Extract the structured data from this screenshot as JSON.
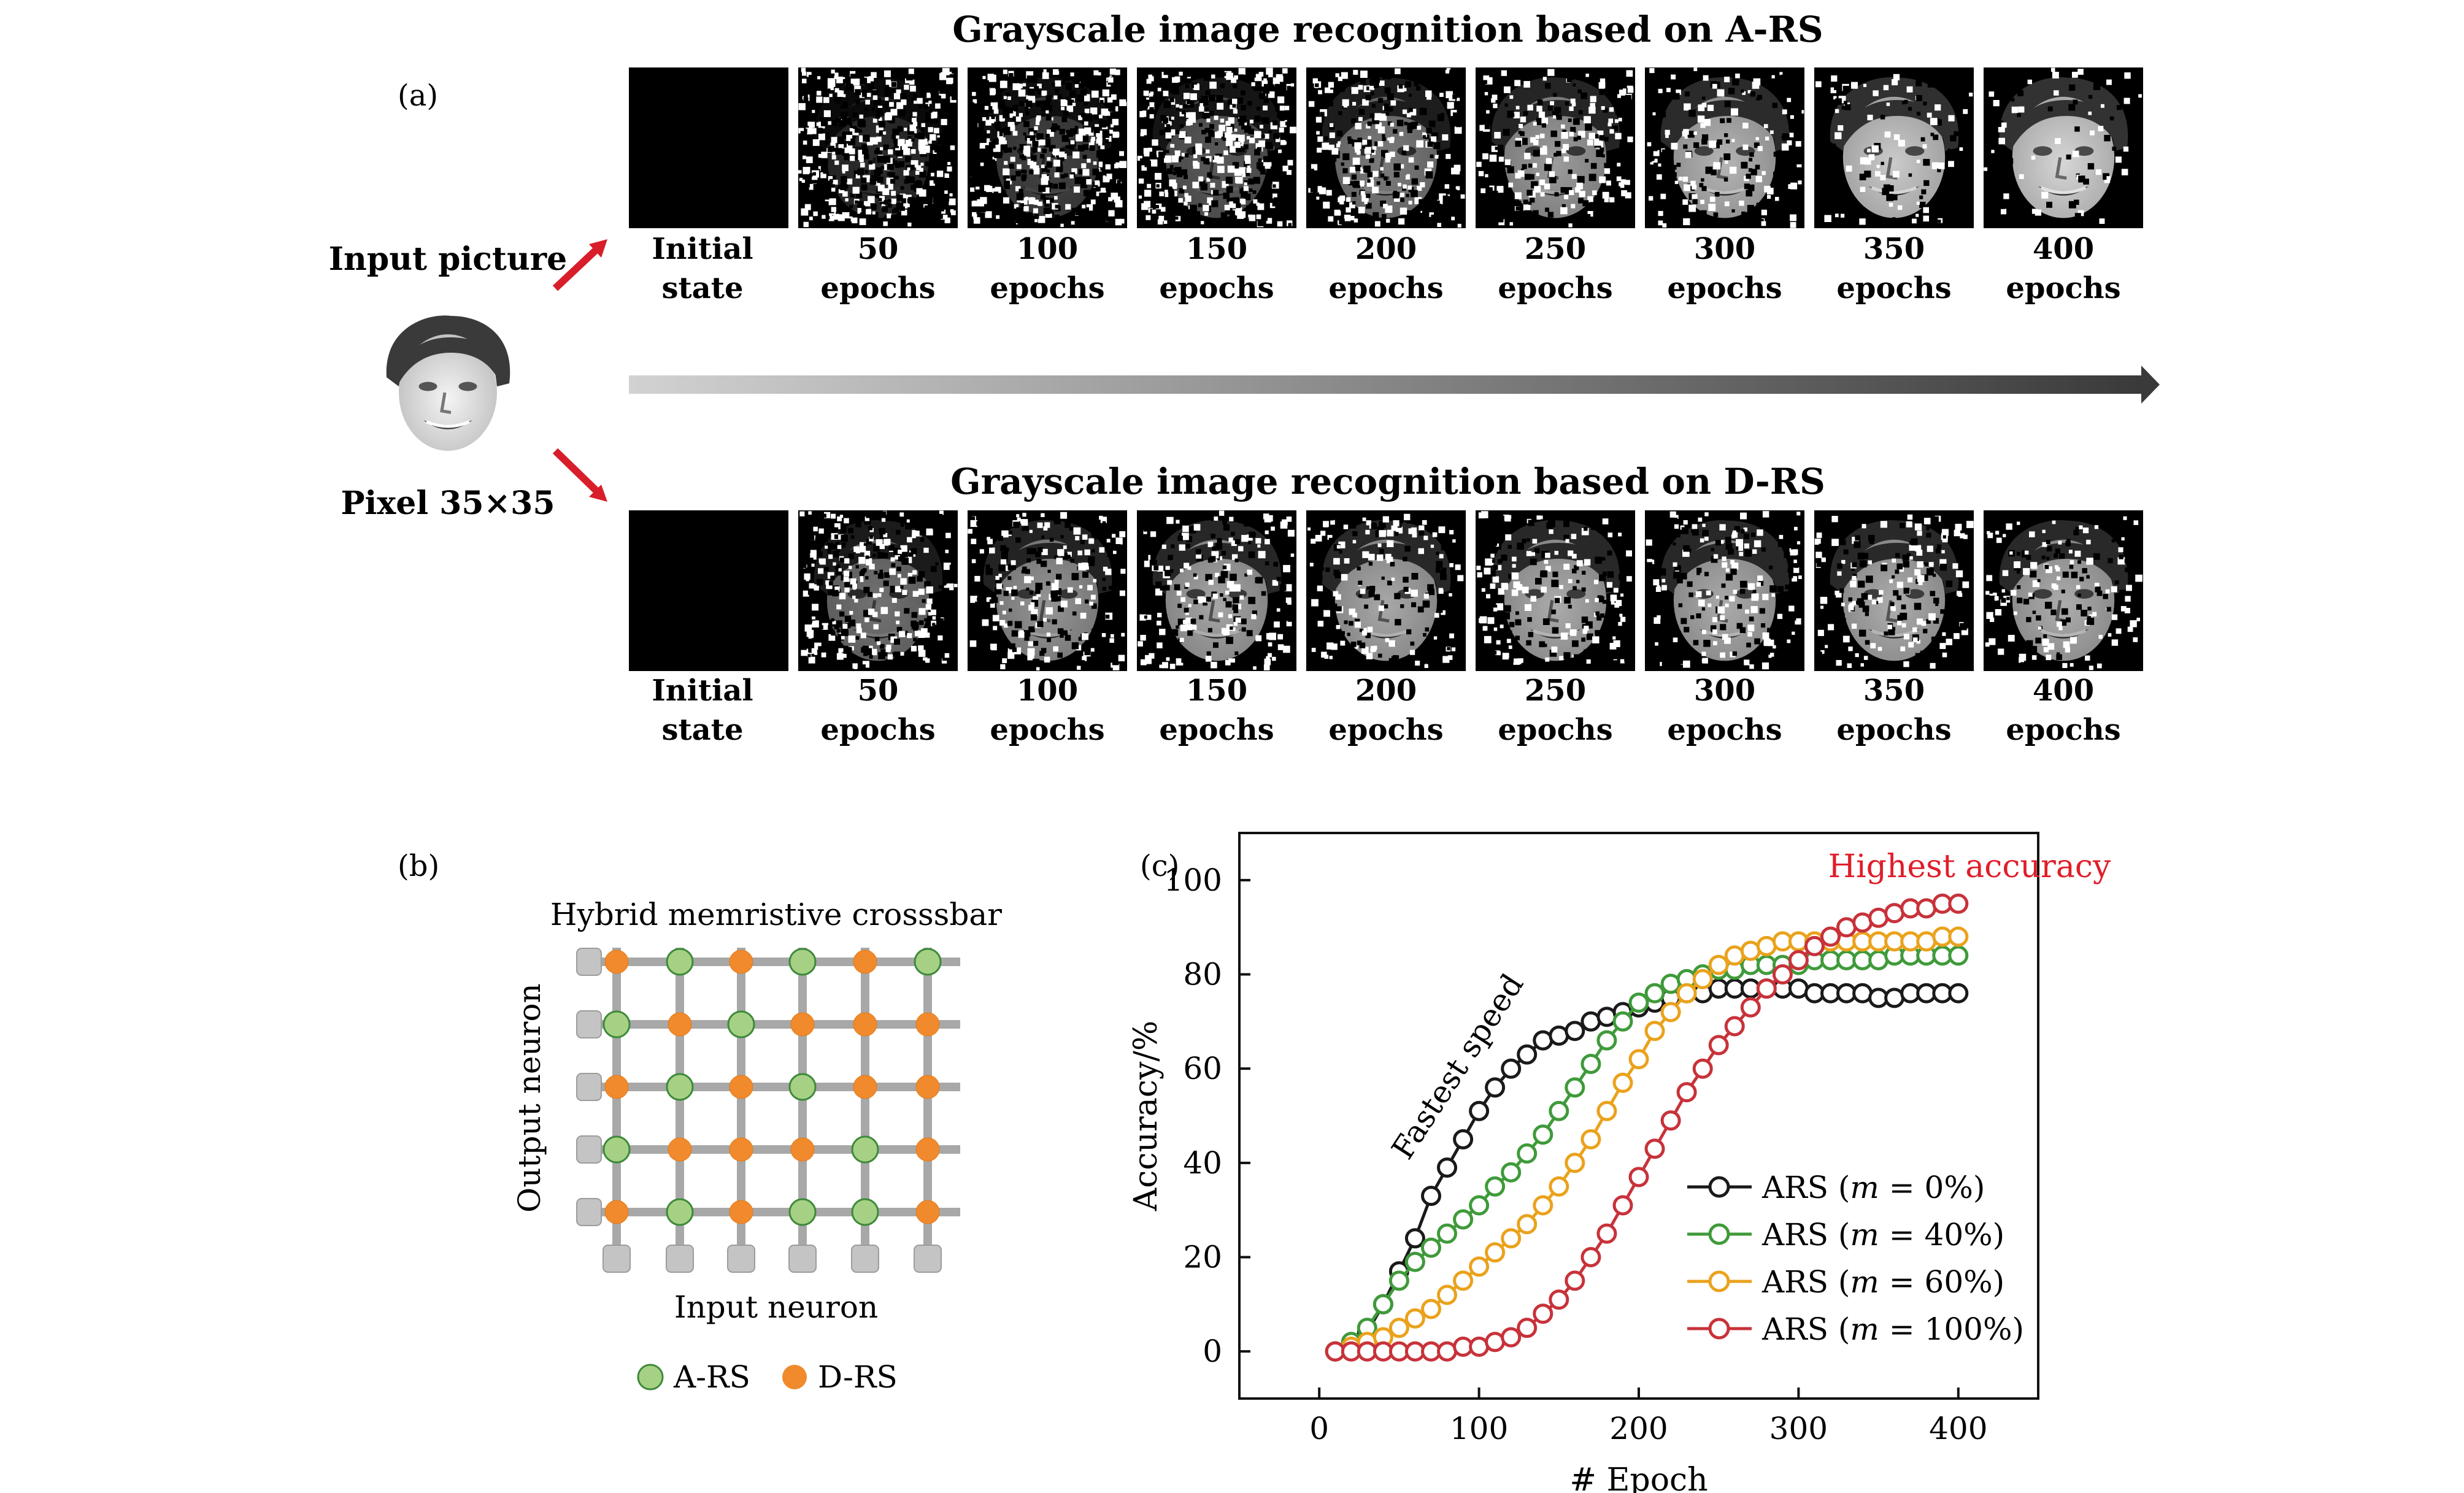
{
  "panel_a": {
    "label": "(a)",
    "input_title": "Input picture",
    "input_caption": "Pixel 35×35",
    "rows": [
      {
        "title": "Grayscale image recognition based on A-RS",
        "noise_levels": [
          1.0,
          0.96,
          0.86,
          0.74,
          0.58,
          0.42,
          0.3,
          0.2,
          0.14
        ],
        "frame_labels": [
          [
            "Initial",
            "state"
          ],
          [
            "50",
            "epochs"
          ],
          [
            "100",
            "epochs"
          ],
          [
            "150",
            "epochs"
          ],
          [
            "200",
            "epochs"
          ],
          [
            "250",
            "epochs"
          ],
          [
            "300",
            "epochs"
          ],
          [
            "350",
            "epochs"
          ],
          [
            "400",
            "epochs"
          ]
        ]
      },
      {
        "title": "Grayscale image recognition based on D-RS",
        "noise_levels": [
          1.0,
          0.62,
          0.46,
          0.38,
          0.36,
          0.35,
          0.35,
          0.34,
          0.34
        ],
        "frame_labels": [
          [
            "Initial",
            "state"
          ],
          [
            "50",
            "epochs"
          ],
          [
            "100",
            "epochs"
          ],
          [
            "150",
            "epochs"
          ],
          [
            "200",
            "epochs"
          ],
          [
            "250",
            "epochs"
          ],
          [
            "300",
            "epochs"
          ],
          [
            "350",
            "epochs"
          ],
          [
            "400",
            "epochs"
          ]
        ]
      }
    ]
  },
  "panel_b": {
    "label": "(b)",
    "title": "Hybrid memristive crosssbar",
    "output_label": "Output neuron",
    "input_label": "Input neuron",
    "legend": [
      {
        "name": "A-RS",
        "color": "#a6d185"
      },
      {
        "name": "D-RS",
        "color": "#f08a2c"
      }
    ],
    "grid": [
      [
        "D",
        "A",
        "D",
        "A",
        "D",
        "A"
      ],
      [
        "A",
        "D",
        "A",
        "D",
        "D",
        "D"
      ],
      [
        "D",
        "A",
        "D",
        "A",
        "D",
        "D"
      ],
      [
        "A",
        "D",
        "D",
        "D",
        "A",
        "D"
      ],
      [
        "D",
        "A",
        "D",
        "A",
        "A",
        "D"
      ]
    ]
  },
  "panel_c": {
    "label": "(c)",
    "annotations": {
      "highest_accuracy": "Highest accuracy",
      "fastest_speed": "Fastest speed",
      "highest_color": "#e01e2a"
    }
  },
  "chart_data": {
    "type": "line",
    "title": "",
    "xlabel": "# Epoch",
    "ylabel": "Accuracy/%",
    "xlim": [
      -50,
      450
    ],
    "ylim": [
      -10,
      110
    ],
    "xticks": [
      0,
      100,
      200,
      300,
      400
    ],
    "yticks": [
      0,
      20,
      40,
      60,
      80,
      100
    ],
    "legend_position": "lower-right",
    "grid": false,
    "x": [
      10,
      20,
      30,
      40,
      50,
      60,
      70,
      80,
      90,
      100,
      110,
      120,
      130,
      140,
      150,
      160,
      170,
      180,
      190,
      200,
      210,
      220,
      230,
      240,
      250,
      260,
      270,
      280,
      290,
      300,
      310,
      320,
      330,
      340,
      350,
      360,
      370,
      380,
      390,
      400
    ],
    "series": [
      {
        "name_prefix": "ARS (",
        "name_var": "m",
        "name_suffix": " = 0%)",
        "color": "#1a1a1a",
        "values": [
          0,
          1,
          4,
          10,
          17,
          24,
          33,
          39,
          45,
          51,
          56,
          60,
          63,
          66,
          67,
          68,
          70,
          71,
          72,
          73,
          74,
          75,
          76,
          76,
          77,
          77,
          77,
          77,
          77,
          77,
          76,
          76,
          76,
          76,
          75,
          75,
          76,
          76,
          76,
          76
        ]
      },
      {
        "name_prefix": "ARS (",
        "name_var": "m",
        "name_suffix": " = 40%)",
        "color": "#3f9a3a",
        "values": [
          0,
          2,
          5,
          10,
          15,
          19,
          22,
          25,
          28,
          31,
          35,
          38,
          42,
          46,
          51,
          56,
          61,
          66,
          70,
          74,
          76,
          78,
          79,
          80,
          81,
          81,
          82,
          82,
          82,
          82,
          83,
          83,
          83,
          83,
          83,
          84,
          84,
          84,
          84,
          84
        ]
      },
      {
        "name_prefix": "ARS (",
        "name_var": "m",
        "name_suffix": " = 60%)",
        "color": "#eaa21c",
        "values": [
          0,
          1,
          2,
          3,
          5,
          7,
          9,
          12,
          15,
          18,
          21,
          24,
          27,
          31,
          35,
          40,
          45,
          51,
          57,
          62,
          68,
          72,
          76,
          79,
          82,
          84,
          85,
          86,
          87,
          87,
          87,
          87,
          87,
          87,
          87,
          87,
          87,
          87,
          88,
          88
        ]
      },
      {
        "name_prefix": "ARS (",
        "name_var": "m",
        "name_suffix": " = 100%)",
        "color": "#c8323a",
        "values": [
          0,
          0,
          0,
          0,
          0,
          0,
          0,
          0,
          1,
          1,
          2,
          3,
          5,
          8,
          11,
          15,
          20,
          25,
          31,
          37,
          43,
          49,
          55,
          60,
          65,
          69,
          73,
          77,
          80,
          83,
          86,
          88,
          90,
          91,
          92,
          93,
          94,
          94,
          95,
          95
        ]
      }
    ]
  }
}
